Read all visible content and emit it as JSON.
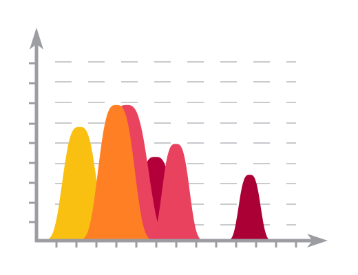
{
  "chart_data": {
    "type": "area",
    "title": "",
    "xlabel": "",
    "ylabel": "",
    "grid": true,
    "legend": "none",
    "xlim": [
      0,
      13
    ],
    "ylim": [
      0,
      10
    ],
    "series": [
      {
        "center": 2.1,
        "peak": 5.7,
        "width": 0.75,
        "color": "#F9C012"
      },
      {
        "center": 5.8,
        "peak": 4.2,
        "width": 0.75,
        "color": "#B3003A"
      },
      {
        "center": 4.4,
        "peak": 6.8,
        "width": 0.95,
        "color": "#E9435F"
      },
      {
        "center": 6.8,
        "peak": 4.85,
        "width": 0.6,
        "color": "#E8425E"
      },
      {
        "center": 3.9,
        "peak": 6.8,
        "width": 0.8,
        "color": "#FF7F24"
      },
      {
        "center": 10.4,
        "peak": 3.3,
        "width": 0.48,
        "color": "#AA0035"
      }
    ],
    "colors": {
      "axis": "#9c9ca3",
      "grid": "#a9a9b0"
    }
  }
}
